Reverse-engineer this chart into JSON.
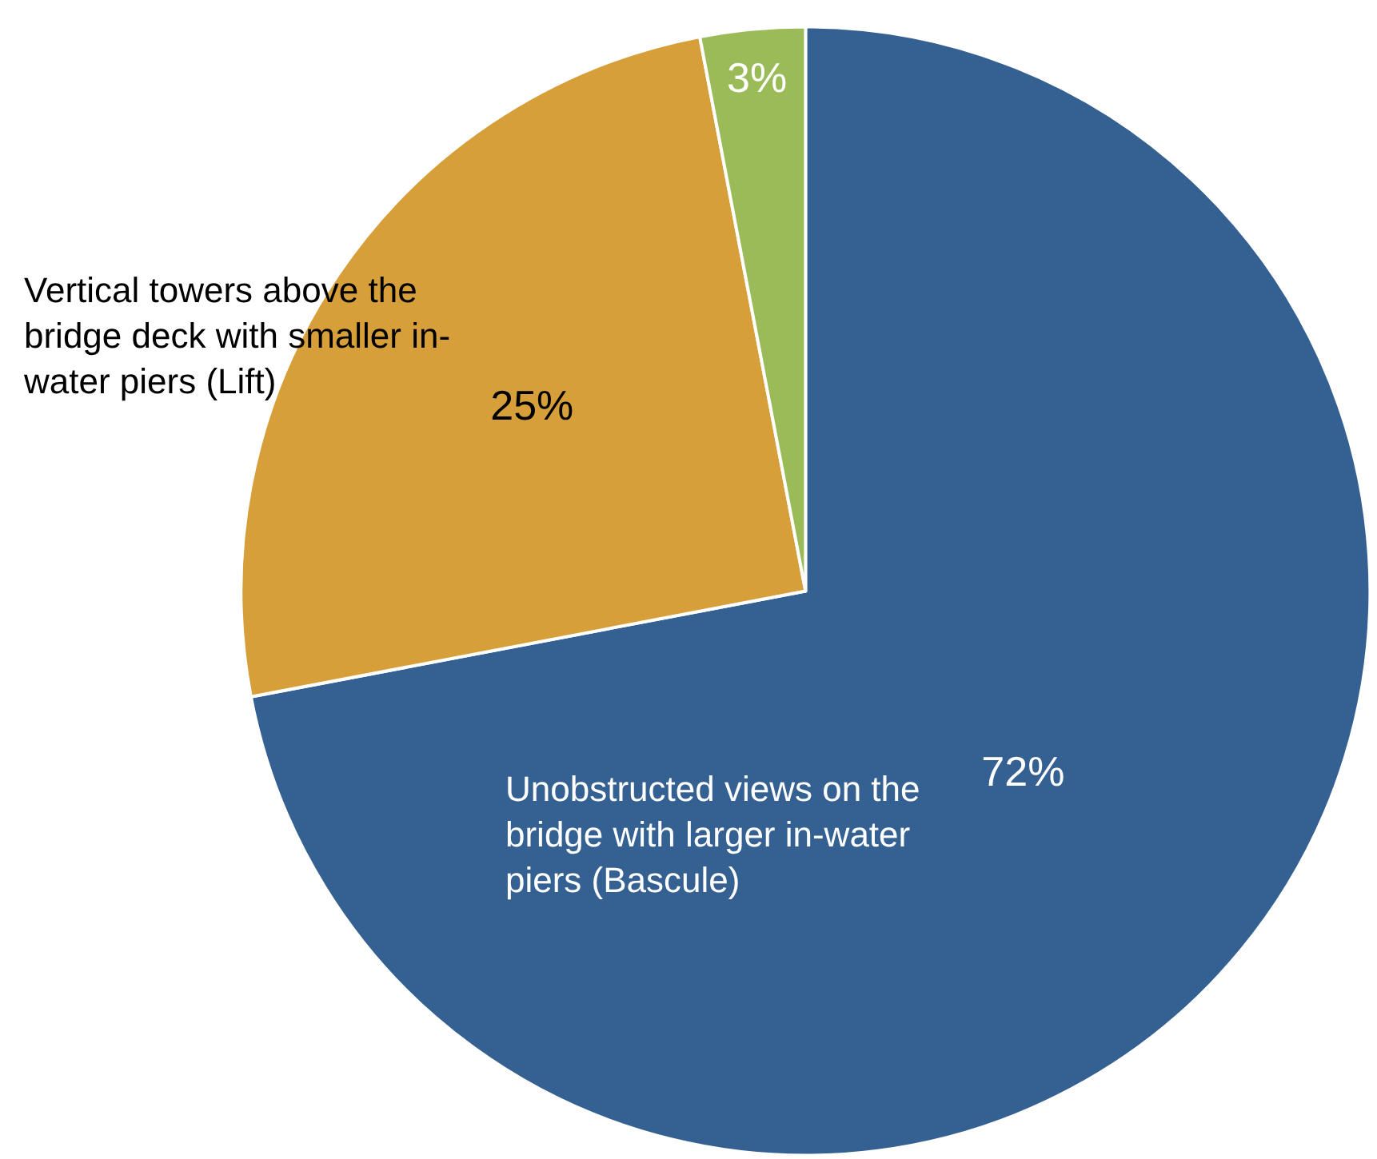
{
  "chart_data": {
    "type": "pie",
    "categories": [
      "Unobstructed views on the bridge with larger in-water piers (Bascule)",
      "Vertical towers above the bridge deck with smaller in-water piers (Lift)",
      null
    ],
    "values": [
      72,
      25,
      3
    ],
    "colors": [
      "#356192",
      "#d69f39",
      "#9bbb59"
    ],
    "value_labels": [
      "72%",
      "25%",
      "3%"
    ],
    "legend": false
  }
}
